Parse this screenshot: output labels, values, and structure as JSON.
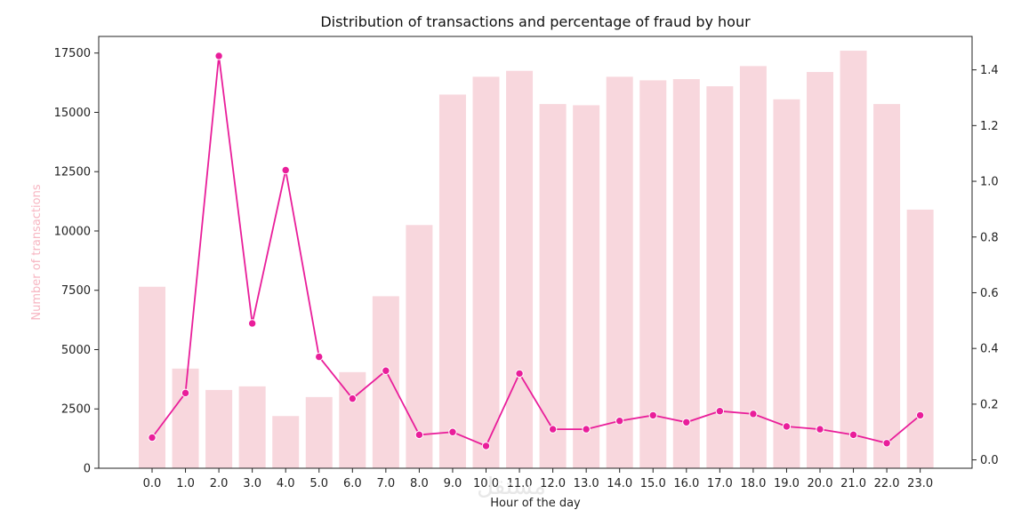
{
  "chart_data": {
    "type": "bar+line",
    "title": "Distribution of transactions and percentage of fraud by hour",
    "xlabel": "Hour of the day",
    "ylabel_left": "Number of transactions",
    "ylabel_right": "",
    "categories": [
      "0.0",
      "1.0",
      "2.0",
      "3.0",
      "4.0",
      "5.0",
      "6.0",
      "7.0",
      "8.0",
      "9.0",
      "10.0",
      "11.0",
      "12.0",
      "13.0",
      "14.0",
      "15.0",
      "16.0",
      "17.0",
      "18.0",
      "19.0",
      "20.0",
      "21.0",
      "22.0",
      "23.0"
    ],
    "bar_series": {
      "values": [
        7650,
        4200,
        3300,
        3450,
        2200,
        3000,
        4050,
        7250,
        10250,
        15750,
        16500,
        16750,
        15350,
        15300,
        16500,
        16350,
        16400,
        16100,
        16950,
        15550,
        16700,
        17600,
        15350,
        10900
      ],
      "color": "#f8d7dd"
    },
    "line_series": {
      "values": [
        0.08,
        0.24,
        1.45,
        0.49,
        1.04,
        0.37,
        0.22,
        0.32,
        0.09,
        0.1,
        0.05,
        0.31,
        0.11,
        0.11,
        0.14,
        0.16,
        0.135,
        0.175,
        0.165,
        0.12,
        0.11,
        0.09,
        0.06,
        0.16
      ],
      "color": "#e91e9a"
    },
    "ylim_left": [
      0,
      18200
    ],
    "ylim_right": [
      -0.03,
      1.52
    ],
    "yticks_left": [
      "0",
      "2500",
      "5000",
      "7500",
      "10000",
      "12500",
      "15000",
      "17500"
    ],
    "yticks_left_values": [
      0,
      2500,
      5000,
      7500,
      10000,
      12500,
      15000,
      17500
    ],
    "yticks_right": [
      "0.0",
      "0.2",
      "0.4",
      "0.6",
      "0.8",
      "1.0",
      "1.2",
      "1.4"
    ],
    "yticks_right_values": [
      0,
      0.2,
      0.4,
      0.6,
      0.8,
      1.0,
      1.2,
      1.4
    ],
    "ylabel_left_color": "#f7b6c2",
    "grid": false
  },
  "watermark": "مستقل"
}
